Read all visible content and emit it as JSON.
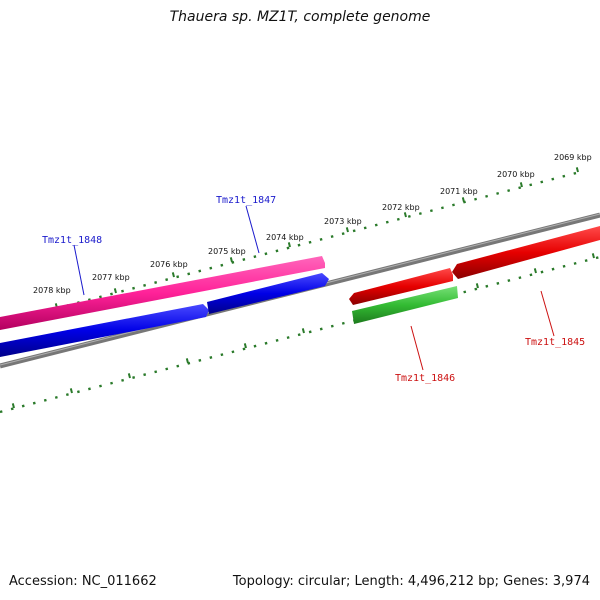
{
  "title": "Thauera sp. MZ1T, complete genome",
  "footer": {
    "accession": "Accession: NC_011662",
    "summary": "Topology: circular; Length: 4,496,212 bp; Genes: 3,974"
  },
  "ticks": [
    "2078 kbp",
    "2077 kbp",
    "2076 kbp",
    "2075 kbp",
    "2074 kbp",
    "2073 kbp",
    "2072 kbp",
    "2071 kbp",
    "2070 kbp",
    "2069 kbp"
  ],
  "genes": [
    {
      "name": "Tmz1t_1848",
      "strand": "forward",
      "color": "#1a1acc"
    },
    {
      "name": "Tmz1t_1847",
      "strand": "forward",
      "color": "#1a1acc"
    },
    {
      "name": "Tmz1t_1846",
      "strand": "reverse",
      "color": "#cc1111"
    },
    {
      "name": "Tmz1t_1845",
      "strand": "reverse",
      "color": "#cc1111"
    }
  ],
  "colors": {
    "cds_forward": "#0000ee",
    "cds_reverse": "#ee0000",
    "gene_forward": "#ff3399",
    "gene_reverse": "#33cc33",
    "backbone": "#888888",
    "tick": "#2a7a2a"
  }
}
